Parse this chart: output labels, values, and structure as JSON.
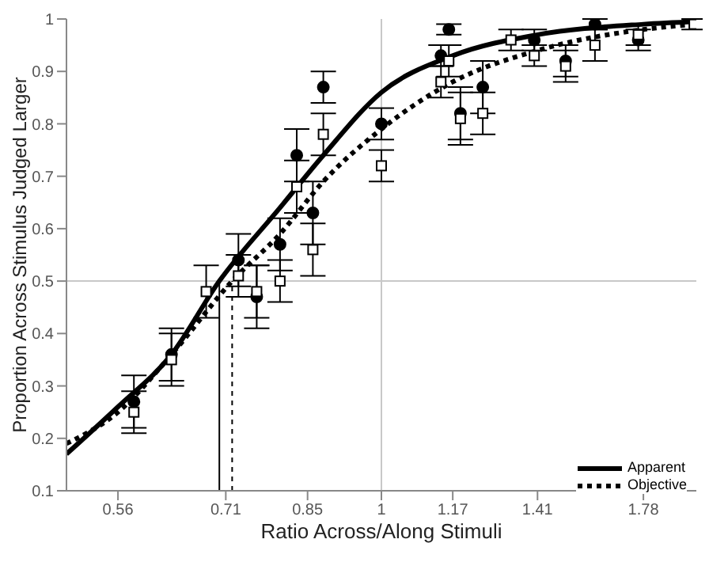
{
  "chart_data": {
    "type": "scatter",
    "xlabel": "Ratio Across/Along Stimuli",
    "ylabel": "Proportion Across Stimulus Judged Larger",
    "log": "x",
    "xlim": [
      0.5,
      2
    ],
    "xticks": [
      0.56,
      0.71,
      0.85,
      1,
      1.17,
      1.41,
      1.78
    ],
    "ylim": [
      0.1,
      1
    ],
    "yticks": [
      0.1,
      0.2,
      0.3,
      0.4,
      0.5,
      0.6,
      0.7,
      0.8,
      0.9,
      1
    ],
    "grid": false,
    "legend": "bottom right",
    "ref_lines": [
      {
        "axis": "y",
        "value": 0.5,
        "color": "#c8c8c8"
      },
      {
        "axis": "x",
        "value": 1,
        "color": "#c8c8c8"
      }
    ],
    "series": [
      {
        "type": "line",
        "name": "Apparent",
        "color": "#000000",
        "line_style": "solid",
        "x": [
          0.5,
          0.56,
          0.63,
          0.7,
          0.8,
          0.88,
          1,
          1.17,
          1.41,
          1.78,
          2
        ],
        "values": [
          0.17,
          0.26,
          0.36,
          0.5,
          0.64,
          0.74,
          0.86,
          0.93,
          0.97,
          0.99,
          0.995
        ]
      },
      {
        "type": "line",
        "name": "Objective",
        "color": "#000000",
        "line_style": "dotted",
        "x": [
          0.5,
          0.56,
          0.63,
          0.72,
          0.8,
          0.88,
          1,
          1.17,
          1.41,
          1.78,
          2
        ],
        "values": [
          0.19,
          0.25,
          0.36,
          0.5,
          0.59,
          0.69,
          0.79,
          0.88,
          0.94,
          0.98,
          0.99
        ]
      },
      {
        "type": "line",
        "color": "#000000",
        "line_style": "solid",
        "x": [
          0.7,
          0.7
        ],
        "values": [
          0.1,
          0.5
        ]
      },
      {
        "type": "line",
        "color": "#000000",
        "line_style": "dotted",
        "x": [
          0.72,
          0.72
        ],
        "values": [
          0.1,
          0.5
        ]
      },
      {
        "color": "#000000",
        "marker": "circle",
        "x": [
          0.58,
          0.63,
          0.73,
          0.76,
          0.8,
          0.83,
          0.86,
          0.88,
          1,
          1.14,
          1.16,
          1.19,
          1.25,
          1.4,
          1.5,
          1.6,
          1.76
        ],
        "values": [
          0.27,
          0.36,
          0.54,
          0.47,
          0.57,
          0.74,
          0.63,
          0.87,
          0.8,
          0.93,
          0.98,
          0.82,
          0.87,
          0.96,
          0.92,
          0.99,
          0.96
        ],
        "errors": [
          0.05,
          0.05,
          0.05,
          0.06,
          0.05,
          0.05,
          0.06,
          0.03,
          0.03,
          0.02,
          0.01,
          0.05,
          0.05,
          0.02,
          0.03,
          0.01,
          0.02
        ]
      },
      {
        "color": "#000000",
        "marker": "square",
        "x": [
          0.58,
          0.63,
          0.68,
          0.73,
          0.76,
          0.8,
          0.83,
          0.86,
          0.88,
          1,
          1.14,
          1.16,
          1.19,
          1.25,
          1.33,
          1.4,
          1.5,
          1.6,
          1.76,
          1.99
        ],
        "values": [
          0.25,
          0.35,
          0.48,
          0.51,
          0.48,
          0.5,
          0.68,
          0.56,
          0.78,
          0.72,
          0.88,
          0.92,
          0.81,
          0.82,
          0.96,
          0.93,
          0.91,
          0.95,
          0.97,
          0.99
        ],
        "errors": [
          0.04,
          0.05,
          0.05,
          0.04,
          0.05,
          0.04,
          0.05,
          0.05,
          0.04,
          0.03,
          0.03,
          0.03,
          0.05,
          0.04,
          0.02,
          0.02,
          0.03,
          0.03,
          0.02,
          0.01
        ]
      }
    ]
  }
}
